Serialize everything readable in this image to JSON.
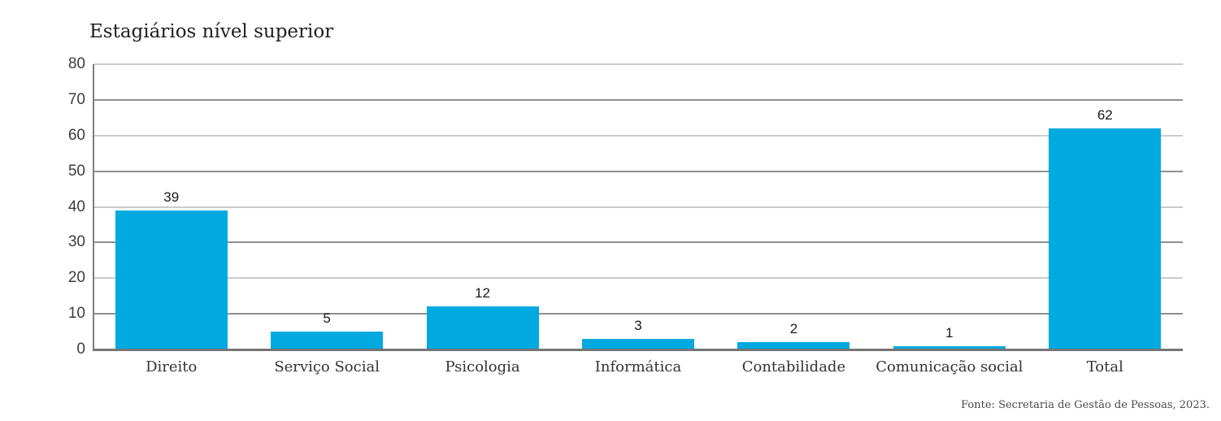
{
  "title": "Estagiários nível superior",
  "source_note": "Fonte: Secretaria de Gestão de Pessoas, 2023.",
  "colors": {
    "bar": "#00A9E0",
    "gridline_light": "#cbcbcb",
    "gridline_dark": "#8f8f8f",
    "axis": "#7d7d7d",
    "title_text": "#1f1f1f",
    "tick_text": "#3d3d3d",
    "category_text": "#333333",
    "source_text": "#4a4a4a"
  },
  "chart_data": {
    "type": "bar",
    "title": "Estagiários nível superior",
    "categories": [
      "Direito",
      "Serviço Social",
      "Psicologia",
      "Informática",
      "Contabilidade",
      "Comunicação social",
      "Total"
    ],
    "values": [
      39,
      5,
      12,
      3,
      2,
      1,
      62
    ],
    "data_labels": [
      "39",
      "5",
      "12",
      "3",
      "2",
      "1",
      "62"
    ],
    "xlabel": "",
    "ylabel": "",
    "ylim": [
      0,
      80
    ],
    "yticks": [
      0,
      10,
      20,
      30,
      40,
      50,
      60,
      70,
      80
    ],
    "grid": true,
    "legend": false,
    "bar_color": "#00A9E0",
    "source": "Fonte: Secretaria de Gestão de Pessoas, 2023."
  }
}
